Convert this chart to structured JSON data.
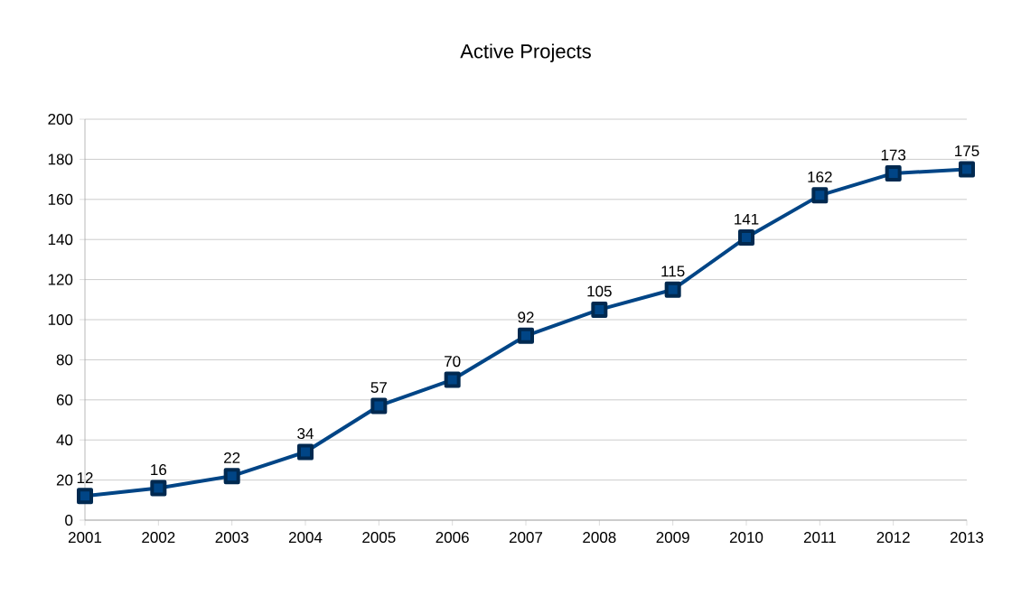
{
  "chart_data": {
    "type": "line",
    "title": "Active Projects",
    "categories": [
      "2001",
      "2002",
      "2003",
      "2004",
      "2005",
      "2006",
      "2007",
      "2008",
      "2009",
      "2010",
      "2011",
      "2012",
      "2013"
    ],
    "series": [
      {
        "color": "#004586",
        "values": [
          12,
          16,
          22,
          34,
          57,
          70,
          92,
          105,
          115,
          141,
          162,
          173,
          175
        ]
      }
    ],
    "ylim": [
      0,
      200
    ],
    "yticks": [
      0,
      20,
      40,
      60,
      80,
      100,
      120,
      140,
      160,
      180,
      200
    ],
    "grid": "y",
    "marker": "square",
    "data_labels": true
  }
}
